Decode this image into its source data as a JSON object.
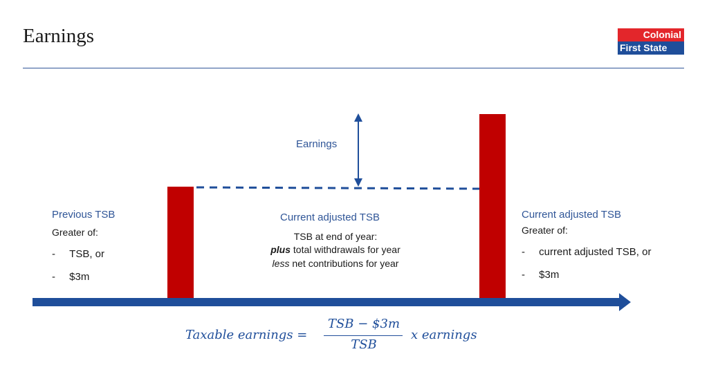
{
  "header": {
    "title": "Earnings",
    "logo_line1": "Colonial",
    "logo_line2": "First State"
  },
  "diagram": {
    "earnings_label": "Earnings",
    "left": {
      "heading": "Previous TSB",
      "subheading": "Greater of:",
      "items": [
        {
          "dash": "-",
          "text": "TSB, or"
        },
        {
          "dash": "-",
          "text": "$3m"
        }
      ]
    },
    "middle": {
      "heading": "Current adjusted TSB",
      "line1": "TSB at end of year:",
      "line2_em": "plus",
      "line2_rest": " total withdrawals for year",
      "line3_em": "less",
      "line3_rest": " net contributions for year"
    },
    "right": {
      "heading": "Current adjusted TSB",
      "subheading": "Greater of:",
      "items": [
        {
          "dash": "-",
          "text": "current adjusted TSB, or"
        },
        {
          "dash": "-",
          "text": "$3m"
        }
      ]
    },
    "colors": {
      "bar": "#c00000",
      "arrow": "#1f4e9a",
      "heading": "#2f5597"
    }
  },
  "formula": {
    "lhs": "Taxable earnings =",
    "numerator": "TSB  − $3m",
    "denominator": "TSB",
    "rhs": "x earnings"
  }
}
